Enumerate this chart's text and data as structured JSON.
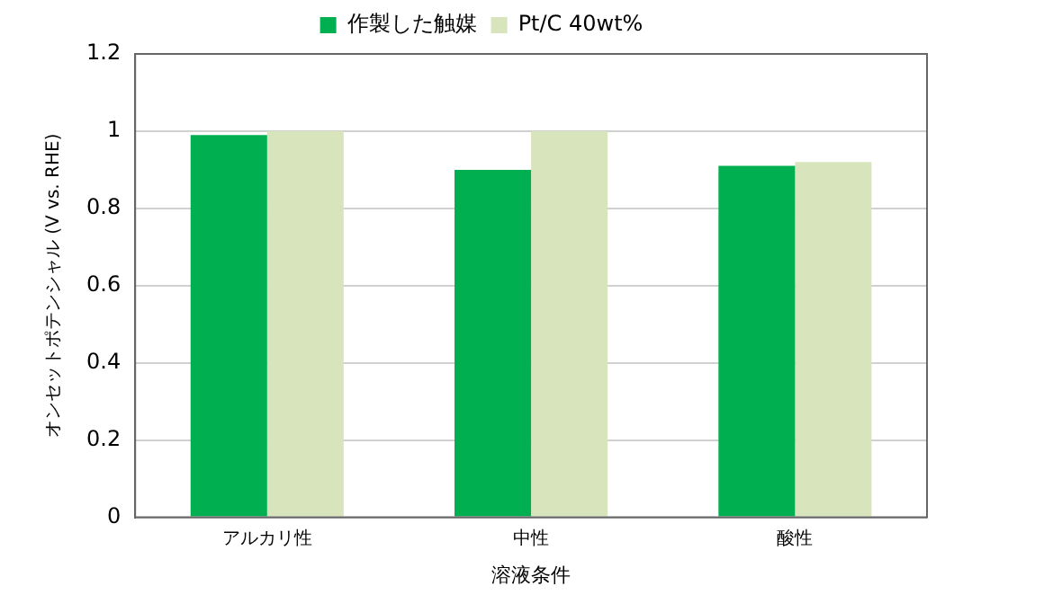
{
  "chart_data": {
    "type": "bar",
    "xlabel": "溶液条件",
    "ylabel": "オンセットポテンシャル (V vs. RHE)",
    "categories": [
      "アルカリ性",
      "中性",
      "酸性"
    ],
    "series": [
      {
        "name": "作製した触媒",
        "color": "#00b050",
        "values": [
          0.99,
          0.9,
          0.91
        ]
      },
      {
        "name": "Pt/C 40wt%",
        "color": "#d8e4bc",
        "values": [
          1.0,
          1.0,
          0.92
        ]
      }
    ],
    "ylim": [
      0,
      1.2
    ],
    "yticks": [
      0,
      0.2,
      0.4,
      0.6,
      0.8,
      1,
      1.2
    ],
    "grid": "y",
    "legend": "top"
  }
}
